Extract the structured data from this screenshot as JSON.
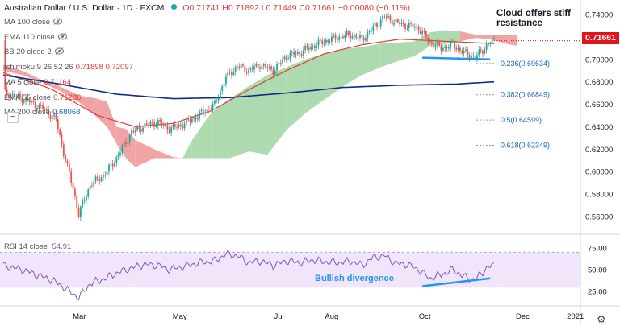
{
  "header": {
    "symbol": "Australian Dollar / U.S. Dollar · 1D · FXCM",
    "ohlc": "O0.71741 H0.71892 L0.71449 C0.71661 −0.00080 (−0.11%)",
    "status_color": "#26a69a"
  },
  "indicators": [
    {
      "label": "MA 100 close",
      "value": "",
      "color": "#8a8a8a",
      "icon": "eye-hidden-icon"
    },
    {
      "label": "EMA 110 close",
      "value": "",
      "color": "#8a8a8a",
      "icon": "eye-hidden-icon"
    },
    {
      "label": "BB 20 close 2",
      "value": "",
      "color": "#8a8a8a",
      "icon": "eye-hidden-icon"
    },
    {
      "label": "Ichimoku 9 26 52 26",
      "value": "0.71898  0.72097",
      "color": "#e53935",
      "icon": ""
    },
    {
      "label": "MA 5 close",
      "value": "0.71164",
      "color": "#e53935",
      "icon": ""
    },
    {
      "label": "EMA 55 close",
      "value": "0.71286",
      "color": "#e53935",
      "icon": ""
    },
    {
      "label": "MA 200 close",
      "value": "0.68068",
      "color": "#1565c0",
      "icon": ""
    }
  ],
  "annotations": {
    "cloud": "Cloud offers stiff resistance",
    "divergence": "Bullish divergence"
  },
  "rsi": {
    "label": "RSI 14 close",
    "value": "54.91",
    "color": "#7e57c2"
  },
  "current_price": "0.71661",
  "colors": {
    "bull": "#26a69a",
    "bear": "#ef5350",
    "ma200": "#0d2c8a",
    "ema55": "#e53935",
    "cloud_bull": "#a5d6a7",
    "cloud_bear": "#ef9a9a",
    "fib": "#999999",
    "annotation": "#2196f3"
  },
  "chart_data": {
    "type": "candlestick",
    "title": "Australian Dollar / U.S. Dollar · 1D · FXCM",
    "x_ticks": [
      "Mar",
      "May",
      "Jul",
      "Aug",
      "Oct",
      "Dec",
      "2021"
    ],
    "y_ticks": [
      "0.74000",
      "0.72000",
      "0.70000",
      "0.68000",
      "0.66000",
      "0.64000",
      "0.62000",
      "0.60000",
      "0.58000",
      "0.56000"
    ],
    "ylim": [
      0.545,
      0.745
    ],
    "close_path": [
      [
        1,
        0.67
      ],
      [
        12,
        0.664
      ],
      [
        22,
        0.655
      ],
      [
        28,
        0.646
      ],
      [
        32,
        0.617
      ],
      [
        37,
        0.585
      ],
      [
        40,
        0.562
      ],
      [
        46,
        0.588
      ],
      [
        54,
        0.598
      ],
      [
        60,
        0.612
      ],
      [
        68,
        0.635
      ],
      [
        75,
        0.641
      ],
      [
        82,
        0.644
      ],
      [
        88,
        0.638
      ],
      [
        95,
        0.642
      ],
      [
        104,
        0.651
      ],
      [
        112,
        0.66
      ],
      [
        118,
        0.684
      ],
      [
        124,
        0.694
      ],
      [
        130,
        0.69
      ],
      [
        136,
        0.695
      ],
      [
        143,
        0.69
      ],
      [
        150,
        0.703
      ],
      [
        157,
        0.706
      ],
      [
        164,
        0.712
      ],
      [
        170,
        0.716
      ],
      [
        178,
        0.72
      ],
      [
        184,
        0.722
      ],
      [
        190,
        0.718
      ],
      [
        196,
        0.728
      ],
      [
        202,
        0.738
      ],
      [
        208,
        0.733
      ],
      [
        214,
        0.73
      ],
      [
        220,
        0.728
      ],
      [
        226,
        0.715
      ],
      [
        232,
        0.71
      ],
      [
        238,
        0.713
      ],
      [
        244,
        0.706
      ],
      [
        250,
        0.702
      ],
      [
        256,
        0.712
      ],
      [
        260,
        0.717
      ]
    ],
    "ma200_path": [
      [
        0,
        0.686
      ],
      [
        30,
        0.678
      ],
      [
        60,
        0.669
      ],
      [
        90,
        0.665
      ],
      [
        120,
        0.666
      ],
      [
        150,
        0.67
      ],
      [
        180,
        0.675
      ],
      [
        210,
        0.677
      ],
      [
        240,
        0.678
      ],
      [
        260,
        0.68
      ]
    ],
    "ema55_path": [
      [
        0,
        0.688
      ],
      [
        25,
        0.674
      ],
      [
        50,
        0.65
      ],
      [
        70,
        0.64
      ],
      [
        90,
        0.643
      ],
      [
        110,
        0.654
      ],
      [
        130,
        0.673
      ],
      [
        150,
        0.69
      ],
      [
        170,
        0.705
      ],
      [
        190,
        0.713
      ],
      [
        210,
        0.718
      ],
      [
        235,
        0.716
      ],
      [
        260,
        0.714
      ]
    ],
    "cloud": [
      [
        0,
        0.69,
        0.695
      ],
      [
        10,
        0.686,
        0.69
      ],
      [
        20,
        0.68,
        0.682
      ],
      [
        30,
        0.672,
        0.676
      ],
      [
        40,
        0.662,
        0.668
      ],
      [
        50,
        0.648,
        0.665
      ],
      [
        55,
        0.64,
        0.662
      ],
      [
        60,
        0.625,
        0.64
      ],
      [
        65,
        0.612,
        0.638
      ],
      [
        70,
        0.604,
        0.628
      ],
      [
        80,
        0.612,
        0.62
      ],
      [
        90,
        0.612,
        0.613
      ],
      [
        95,
        0.612,
        0.612
      ],
      [
        100,
        0.612,
        0.628
      ],
      [
        110,
        0.612,
        0.652
      ],
      [
        120,
        0.612,
        0.665
      ],
      [
        130,
        0.618,
        0.676
      ],
      [
        140,
        0.615,
        0.686
      ],
      [
        150,
        0.637,
        0.693
      ],
      [
        160,
        0.652,
        0.7
      ],
      [
        170,
        0.664,
        0.705
      ],
      [
        180,
        0.676,
        0.709
      ],
      [
        190,
        0.686,
        0.711
      ],
      [
        200,
        0.693,
        0.714
      ],
      [
        210,
        0.699,
        0.715
      ],
      [
        218,
        0.703,
        0.716
      ],
      [
        226,
        0.712,
        0.724
      ],
      [
        234,
        0.714,
        0.726
      ],
      [
        242,
        0.716,
        0.725
      ],
      [
        250,
        0.719,
        0.722
      ],
      [
        258,
        0.718,
        0.722
      ],
      [
        266,
        0.714,
        0.722
      ],
      [
        272,
        0.712,
        0.722
      ]
    ],
    "fib_levels": [
      {
        "label": "0.236(0.69634)",
        "value": 0.69634
      },
      {
        "label": "0.382(0.66849)",
        "value": 0.66849
      },
      {
        "label": "0.5(0.64599)",
        "value": 0.64599
      },
      {
        "label": "0.618(0.62349)",
        "value": 0.62349
      }
    ],
    "price_trendline": [
      [
        222,
        0.7015
      ],
      [
        258,
        0.7
      ]
    ],
    "rsi_ticks": [
      "75.00",
      "50.00",
      "25.00"
    ],
    "rsi_band": [
      30,
      70
    ],
    "rsi_path": [
      [
        0,
        55
      ],
      [
        10,
        50
      ],
      [
        18,
        44
      ],
      [
        26,
        38
      ],
      [
        32,
        30
      ],
      [
        37,
        22
      ],
      [
        40,
        18
      ],
      [
        46,
        34
      ],
      [
        54,
        40
      ],
      [
        60,
        46
      ],
      [
        68,
        52
      ],
      [
        75,
        56
      ],
      [
        82,
        55
      ],
      [
        88,
        50
      ],
      [
        96,
        54
      ],
      [
        104,
        58
      ],
      [
        112,
        60
      ],
      [
        118,
        68
      ],
      [
        124,
        66
      ],
      [
        130,
        58
      ],
      [
        136,
        60
      ],
      [
        143,
        55
      ],
      [
        150,
        60
      ],
      [
        157,
        58
      ],
      [
        164,
        61
      ],
      [
        170,
        59
      ],
      [
        178,
        58
      ],
      [
        184,
        60
      ],
      [
        190,
        55
      ],
      [
        196,
        64
      ],
      [
        202,
        66
      ],
      [
        208,
        57
      ],
      [
        214,
        56
      ],
      [
        220,
        50
      ],
      [
        226,
        40
      ],
      [
        232,
        44
      ],
      [
        238,
        50
      ],
      [
        244,
        42
      ],
      [
        250,
        38
      ],
      [
        256,
        52
      ],
      [
        260,
        55
      ]
    ],
    "rsi_trendline": [
      [
        222,
        31
      ],
      [
        258,
        40
      ]
    ]
  }
}
